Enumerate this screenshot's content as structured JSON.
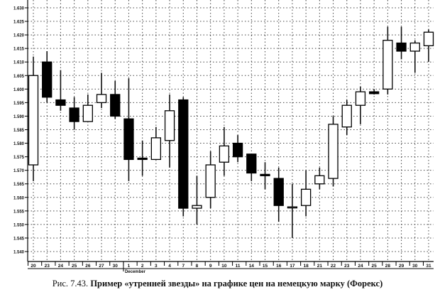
{
  "caption": {
    "figure_label": "Рис. 7.43.",
    "text": "Пример «утренней звезды» на графике цен на немецкую марку (Форекс)"
  },
  "chart_data": {
    "type": "candlestick",
    "title": "",
    "xlabel": "",
    "ylabel": "",
    "ylim": [
      1.54,
      1.63
    ],
    "yticks": [
      "1.630",
      "1.625",
      "1.620",
      "1.615",
      "1.610",
      "1.605",
      "1.600",
      "1.595",
      "1.590",
      "1.585",
      "1.580",
      "1.575",
      "1.570",
      "1.565",
      "1.560",
      "1.555",
      "1.550",
      "1.545",
      "1.540"
    ],
    "grid": true,
    "grid_style": "dotted",
    "month_label": "December",
    "month_label_at": "1",
    "colors": {
      "up": "#ffffff",
      "down": "#000000",
      "outline": "#000000"
    },
    "candles": [
      {
        "date": "20",
        "open": 1.572,
        "high": 1.612,
        "low": 1.566,
        "close": 1.605
      },
      {
        "date": "23",
        "open": 1.61,
        "high": 1.614,
        "low": 1.595,
        "close": 1.597
      },
      {
        "date": "24",
        "open": 1.596,
        "high": 1.607,
        "low": 1.592,
        "close": 1.594
      },
      {
        "date": "25",
        "open": 1.593,
        "high": 1.597,
        "low": 1.585,
        "close": 1.588
      },
      {
        "date": "26",
        "open": 1.588,
        "high": 1.598,
        "low": 1.588,
        "close": 1.594
      },
      {
        "date": "27",
        "open": 1.595,
        "high": 1.606,
        "low": 1.593,
        "close": 1.598
      },
      {
        "date": "30",
        "open": 1.598,
        "high": 1.603,
        "low": 1.589,
        "close": 1.59
      },
      {
        "date": "1",
        "open": 1.589,
        "high": 1.604,
        "low": 1.566,
        "close": 1.574
      },
      {
        "date": "2",
        "open": 1.5745,
        "high": 1.581,
        "low": 1.568,
        "close": 1.574
      },
      {
        "date": "3",
        "open": 1.574,
        "high": 1.586,
        "low": 1.574,
        "close": 1.582
      },
      {
        "date": "4",
        "open": 1.581,
        "high": 1.598,
        "low": 1.571,
        "close": 1.592
      },
      {
        "date": "7",
        "open": 1.596,
        "high": 1.597,
        "low": 1.553,
        "close": 1.556
      },
      {
        "date": "8",
        "open": 1.556,
        "high": 1.568,
        "low": 1.55,
        "close": 1.557
      },
      {
        "date": "9",
        "open": 1.56,
        "high": 1.577,
        "low": 1.556,
        "close": 1.572
      },
      {
        "date": "10",
        "open": 1.573,
        "high": 1.586,
        "low": 1.568,
        "close": 1.579
      },
      {
        "date": "11",
        "open": 1.58,
        "high": 1.583,
        "low": 1.573,
        "close": 1.575
      },
      {
        "date": "14",
        "open": 1.576,
        "high": 1.576,
        "low": 1.566,
        "close": 1.569
      },
      {
        "date": "15",
        "open": 1.5685,
        "high": 1.573,
        "low": 1.563,
        "close": 1.568
      },
      {
        "date": "16",
        "open": 1.567,
        "high": 1.571,
        "low": 1.551,
        "close": 1.557
      },
      {
        "date": "17",
        "open": 1.5565,
        "high": 1.565,
        "low": 1.545,
        "close": 1.5565
      },
      {
        "date": "18",
        "open": 1.557,
        "high": 1.57,
        "low": 1.553,
        "close": 1.563
      },
      {
        "date": "21",
        "open": 1.565,
        "high": 1.571,
        "low": 1.563,
        "close": 1.568
      },
      {
        "date": "22",
        "open": 1.567,
        "high": 1.59,
        "low": 1.564,
        "close": 1.587
      },
      {
        "date": "23",
        "open": 1.586,
        "high": 1.596,
        "low": 1.583,
        "close": 1.594
      },
      {
        "date": "24",
        "open": 1.594,
        "high": 1.601,
        "low": 1.587,
        "close": 1.599
      },
      {
        "date": "25",
        "open": 1.599,
        "high": 1.6,
        "low": 1.598,
        "close": 1.5983
      },
      {
        "date": "28",
        "open": 1.6,
        "high": 1.623,
        "low": 1.598,
        "close": 1.618
      },
      {
        "date": "29",
        "open": 1.617,
        "high": 1.623,
        "low": 1.611,
        "close": 1.614
      },
      {
        "date": "30",
        "open": 1.614,
        "high": 1.618,
        "low": 1.606,
        "close": 1.617
      },
      {
        "date": "31",
        "open": 1.616,
        "high": 1.622,
        "low": 1.61,
        "close": 1.621
      }
    ]
  }
}
